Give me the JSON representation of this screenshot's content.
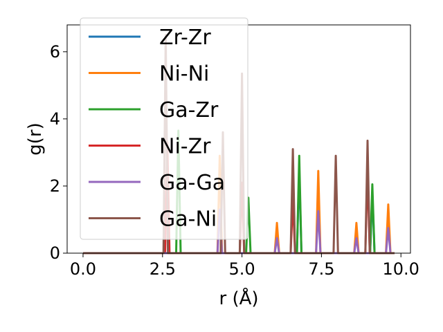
{
  "chart_data": {
    "type": "line",
    "title": "",
    "xlabel": "r (Å)",
    "ylabel": "g(r)",
    "xlim": [
      -0.5,
      10.3
    ],
    "ylim": [
      0,
      6.8
    ],
    "xticks": [
      0.0,
      2.5,
      5.0,
      7.5,
      10.0
    ],
    "xtick_labels": [
      "0.0",
      "2.5",
      "5.0",
      "7.5",
      "10.0"
    ],
    "yticks": [
      0,
      2,
      4,
      6
    ],
    "ytick_labels": [
      "0",
      "2",
      "4",
      "6"
    ],
    "grid": false,
    "legend_position": "top-left",
    "peak_half_width": 0.07,
    "series": [
      {
        "name": "Zr-Zr",
        "color": "#1f77b4",
        "peaks": [
          [
            6.8,
            2.5
          ],
          [
            9.1,
            1.8
          ]
        ]
      },
      {
        "name": "Ni-Ni",
        "color": "#ff7f0e",
        "peaks": [
          [
            4.3,
            2.9
          ],
          [
            6.1,
            0.9
          ],
          [
            7.4,
            2.45
          ],
          [
            8.6,
            0.9
          ],
          [
            9.6,
            1.45
          ]
        ]
      },
      {
        "name": "Ga-Zr",
        "color": "#2ca02c",
        "peaks": [
          [
            3.0,
            3.65
          ],
          [
            5.2,
            1.65
          ],
          [
            6.8,
            2.9
          ],
          [
            9.1,
            2.05
          ]
        ]
      },
      {
        "name": "Ni-Zr",
        "color": "#d62728",
        "peaks": [
          [
            2.65,
            3.3
          ],
          [
            5.0,
            2.1
          ],
          [
            6.6,
            1.6
          ],
          [
            8.95,
            2.5
          ]
        ]
      },
      {
        "name": "Ga-Ga",
        "color": "#9467bd",
        "peaks": [
          [
            4.3,
            1.3
          ],
          [
            6.1,
            0.45
          ],
          [
            7.4,
            1.25
          ],
          [
            8.6,
            0.45
          ],
          [
            9.6,
            0.75
          ]
        ]
      },
      {
        "name": "Ga-Ni",
        "color": "#8c564b",
        "peaks": [
          [
            2.6,
            6.5
          ],
          [
            4.4,
            3.6
          ],
          [
            5.0,
            5.35
          ],
          [
            6.6,
            3.1
          ],
          [
            7.95,
            2.9
          ],
          [
            8.95,
            3.35
          ]
        ]
      }
    ]
  }
}
